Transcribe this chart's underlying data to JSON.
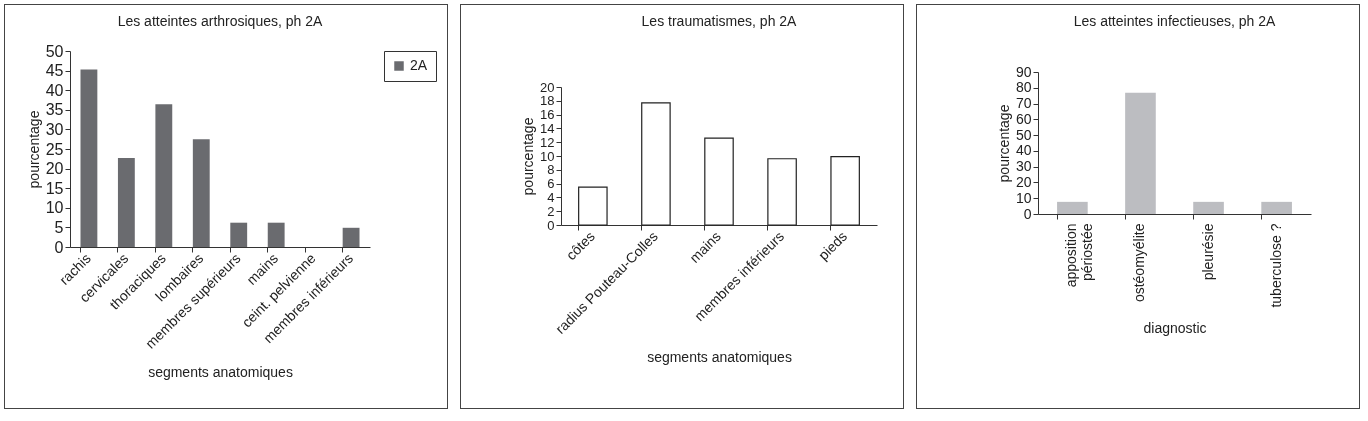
{
  "chart_data": [
    {
      "type": "bar",
      "title": "Les atteintes arthrosiques, ph 2A",
      "xlabel": "segments anatomiques",
      "ylabel": "pourcentage",
      "categories": [
        "rachis",
        "cervicales",
        "thoraciques",
        "lombaires",
        "membres supérieurs",
        "mains",
        "ceint. pelvienne",
        "membres inférieurs"
      ],
      "series": [
        {
          "name": "2A",
          "color": "#6a6b6f",
          "values": [
            45.3,
            22.7,
            36.4,
            27.5,
            6.2,
            6.2,
            0,
            4.9
          ]
        }
      ],
      "ylim": [
        0,
        50
      ],
      "yticks": [
        0,
        5,
        10,
        15,
        20,
        25,
        30,
        35,
        40,
        45,
        50
      ],
      "grid": false,
      "legend": "right"
    },
    {
      "type": "bar",
      "title": "Les traumatismes, ph 2A",
      "xlabel": "segments anatomiques",
      "ylabel": "pourcentage",
      "categories": [
        "côtes",
        "radius Pouteau-Colles",
        "mains",
        "membres inférieurs",
        "pieds"
      ],
      "series": [
        {
          "color": "#ffffff",
          "values": [
            5.5,
            17.7,
            12.6,
            9.6,
            9.9
          ]
        }
      ],
      "ylim": [
        0,
        20
      ],
      "yticks": [
        0,
        2,
        4,
        6,
        8,
        10,
        12,
        14,
        16,
        18,
        20
      ],
      "grid": false,
      "legend": false
    },
    {
      "type": "bar",
      "title": "Les atteintes infectieuses, ph 2A",
      "xlabel": "diagnostic",
      "ylabel": "pourcentage",
      "categories": [
        "apposition périostée",
        "ostéomyélite",
        "pleurésie",
        "tuberculose ?"
      ],
      "series": [
        {
          "color": "#bcbdc1",
          "values": [
            7.7,
            76.9,
            7.7,
            7.7
          ]
        }
      ],
      "ylim": [
        0,
        90
      ],
      "yticks": [
        0,
        10,
        20,
        30,
        40,
        50,
        60,
        70,
        80,
        90
      ],
      "grid": false,
      "legend": false
    }
  ]
}
